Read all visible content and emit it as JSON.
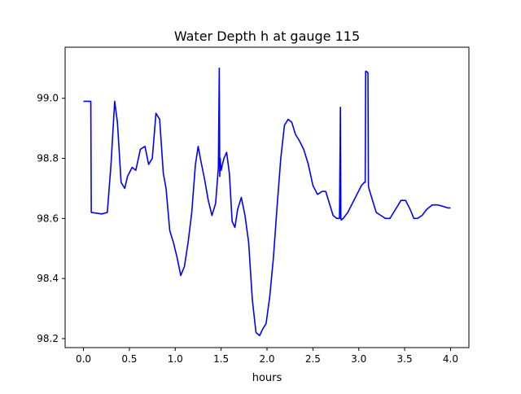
{
  "chart_data": {
    "type": "line",
    "title": "Water Depth h at gauge 115",
    "xlabel": "hours",
    "ylabel": "",
    "xlim": [
      -0.2,
      4.2
    ],
    "ylim": [
      98.17,
      99.17
    ],
    "xticks": [
      0.0,
      0.5,
      1.0,
      1.5,
      2.0,
      2.5,
      3.0,
      3.5,
      4.0
    ],
    "xtick_labels": [
      "0.0",
      "0.5",
      "1.0",
      "1.5",
      "2.0",
      "2.5",
      "3.0",
      "3.5",
      "4.0"
    ],
    "yticks": [
      98.2,
      98.4,
      98.6,
      98.8,
      99.0
    ],
    "ytick_labels": [
      "98.2",
      "98.4",
      "98.6",
      "98.8",
      "99.0"
    ],
    "grid": false,
    "series": [
      {
        "color": "#0000ff",
        "x": [
          0.0,
          0.08,
          0.085,
          0.2,
          0.26,
          0.3,
          0.34,
          0.37,
          0.41,
          0.45,
          0.48,
          0.53,
          0.57,
          0.62,
          0.67,
          0.71,
          0.75,
          0.79,
          0.83,
          0.87,
          0.9,
          0.94,
          0.98,
          1.02,
          1.06,
          1.1,
          1.14,
          1.18,
          1.22,
          1.25,
          1.28,
          1.32,
          1.36,
          1.4,
          1.44,
          1.47,
          1.48,
          1.485,
          1.49,
          1.495,
          1.5,
          1.53,
          1.56,
          1.59,
          1.62,
          1.65,
          1.68,
          1.72,
          1.76,
          1.8,
          1.84,
          1.88,
          1.92,
          1.95,
          1.99,
          2.03,
          2.07,
          2.11,
          2.15,
          2.19,
          2.23,
          2.27,
          2.31,
          2.35,
          2.4,
          2.45,
          2.5,
          2.55,
          2.6,
          2.64,
          2.68,
          2.72,
          2.76,
          2.79,
          2.8,
          2.805,
          2.81,
          2.83,
          2.88,
          2.93,
          2.98,
          3.03,
          3.06,
          3.07,
          3.075,
          3.08,
          3.1,
          3.105,
          3.11,
          3.14,
          3.19,
          3.24,
          3.29,
          3.34,
          3.4,
          3.46,
          3.51,
          3.56,
          3.6,
          3.64,
          3.69,
          3.74,
          3.8,
          3.86,
          3.92,
          3.97,
          4.0
        ],
        "y": [
          98.99,
          98.99,
          98.62,
          98.615,
          98.62,
          98.78,
          98.99,
          98.92,
          98.72,
          98.7,
          98.74,
          98.77,
          98.76,
          98.83,
          98.84,
          98.78,
          98.8,
          98.95,
          98.93,
          98.75,
          98.7,
          98.56,
          98.52,
          98.47,
          98.41,
          98.44,
          98.52,
          98.62,
          98.78,
          98.84,
          98.79,
          98.73,
          98.66,
          98.61,
          98.65,
          98.77,
          99.1,
          98.74,
          98.8,
          98.78,
          98.76,
          98.8,
          98.82,
          98.75,
          98.59,
          98.57,
          98.63,
          98.67,
          98.61,
          98.52,
          98.33,
          98.22,
          98.21,
          98.23,
          98.25,
          98.34,
          98.47,
          98.64,
          98.8,
          98.91,
          98.93,
          98.92,
          98.88,
          98.86,
          98.83,
          98.78,
          98.71,
          98.68,
          98.69,
          98.69,
          98.65,
          98.61,
          98.6,
          98.6,
          98.97,
          98.6,
          98.595,
          98.6,
          98.62,
          98.65,
          98.68,
          98.71,
          98.72,
          98.72,
          99.09,
          99.09,
          99.085,
          98.71,
          98.7,
          98.67,
          98.62,
          98.61,
          98.6,
          98.6,
          98.63,
          98.66,
          98.66,
          98.63,
          98.6,
          98.6,
          98.61,
          98.63,
          98.645,
          98.645,
          98.64,
          98.635,
          98.635
        ]
      }
    ]
  }
}
